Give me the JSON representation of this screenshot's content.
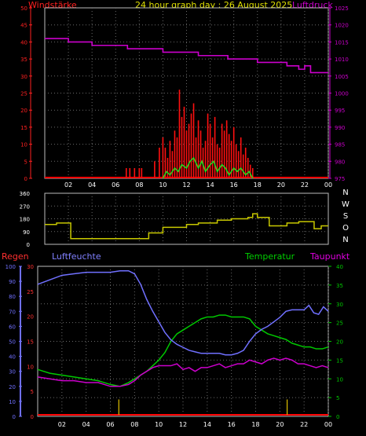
{
  "header": {
    "wind_label": "Windstärke",
    "title": "24 hour graph day : 26 August 2025",
    "pressure_label": "Luftdruck"
  },
  "lower_header": {
    "rain_label": "Regen",
    "humidity_label": "Luftfeuchte",
    "temperature_label": "Temperatur",
    "dewpoint_label": "Taupunkt"
  },
  "compass_labels": [
    "N",
    "W",
    "S",
    "O",
    "N"
  ],
  "colors": {
    "background": "#000000",
    "plot_bg": "#000000",
    "grid": "#6a6a6a",
    "wind_axis": "#ff2020",
    "pressure_axis": "#cc00cc",
    "direction": "#c8c800",
    "humidity": "#7070ff",
    "temperature": "#00c800",
    "dewpoint": "#cc00cc",
    "rain": "#e0c000",
    "title": "#e0e000",
    "axis_text": "#ffffff"
  },
  "chart_data": [
    {
      "type": "line",
      "name": "wind_pressure",
      "x_ticks": [
        "02",
        "04",
        "06",
        "08",
        "10",
        "12",
        "14",
        "16",
        "18",
        "20",
        "22",
        "00"
      ],
      "wind_axis": {
        "ticks": [
          0,
          5,
          10,
          15,
          20,
          25,
          30,
          35,
          40,
          45,
          50
        ],
        "ylim": [
          0,
          50
        ]
      },
      "pressure_axis": {
        "ticks": [
          975,
          980,
          985,
          990,
          995,
          1000,
          1005,
          1010,
          1015,
          1020,
          1025
        ],
        "ylim": [
          975,
          1025
        ]
      },
      "pressure_steps": [
        [
          0,
          1016
        ],
        [
          2.0,
          1015
        ],
        [
          4.0,
          1014
        ],
        [
          7.0,
          1013
        ],
        [
          10.0,
          1012
        ],
        [
          13.0,
          1011
        ],
        [
          15.5,
          1010
        ],
        [
          18.0,
          1009
        ],
        [
          20.5,
          1008
        ],
        [
          21.5,
          1007
        ],
        [
          22.0,
          1008
        ],
        [
          22.5,
          1006
        ],
        [
          24,
          1006
        ]
      ],
      "gust_bars": [
        [
          6.9,
          3
        ],
        [
          7.2,
          3
        ],
        [
          7.6,
          3
        ],
        [
          8.0,
          3
        ],
        [
          8.2,
          3
        ],
        [
          9.3,
          5
        ],
        [
          9.7,
          9
        ],
        [
          10.0,
          12
        ],
        [
          10.2,
          9
        ],
        [
          10.4,
          6
        ],
        [
          10.6,
          11
        ],
        [
          10.8,
          8
        ],
        [
          11.0,
          14
        ],
        [
          11.2,
          12
        ],
        [
          11.4,
          26
        ],
        [
          11.6,
          18
        ],
        [
          11.8,
          21
        ],
        [
          12.0,
          14
        ],
        [
          12.2,
          16
        ],
        [
          12.4,
          19
        ],
        [
          12.6,
          22
        ],
        [
          12.8,
          12
        ],
        [
          13.0,
          17
        ],
        [
          13.2,
          14
        ],
        [
          13.4,
          9
        ],
        [
          13.6,
          11
        ],
        [
          13.8,
          19
        ],
        [
          14.0,
          16
        ],
        [
          14.2,
          12
        ],
        [
          14.4,
          18
        ],
        [
          14.6,
          10
        ],
        [
          14.8,
          9
        ],
        [
          15.0,
          16
        ],
        [
          15.2,
          14
        ],
        [
          15.4,
          17
        ],
        [
          15.6,
          13
        ],
        [
          15.8,
          11
        ],
        [
          16.0,
          15
        ],
        [
          16.2,
          10
        ],
        [
          16.4,
          8
        ],
        [
          16.6,
          12
        ],
        [
          16.8,
          7
        ],
        [
          17.0,
          9
        ],
        [
          17.2,
          6
        ],
        [
          17.4,
          4
        ],
        [
          17.6,
          3
        ]
      ],
      "wind_avg": [
        [
          10.0,
          0
        ],
        [
          10.3,
          2
        ],
        [
          10.6,
          1
        ],
        [
          11.0,
          3
        ],
        [
          11.3,
          2
        ],
        [
          11.6,
          4
        ],
        [
          12.0,
          3
        ],
        [
          12.3,
          5
        ],
        [
          12.6,
          6
        ],
        [
          13.0,
          3
        ],
        [
          13.3,
          5
        ],
        [
          13.6,
          2
        ],
        [
          14.0,
          4
        ],
        [
          14.3,
          5
        ],
        [
          14.6,
          2
        ],
        [
          15.0,
          4
        ],
        [
          15.3,
          3
        ],
        [
          15.6,
          1
        ],
        [
          16.0,
          3
        ],
        [
          16.3,
          2
        ],
        [
          16.6,
          3
        ],
        [
          17.0,
          1
        ],
        [
          17.3,
          2
        ],
        [
          17.6,
          0
        ]
      ],
      "ylabel": ""
    },
    {
      "type": "line",
      "name": "wind_direction",
      "y_ticks": [
        0,
        90,
        180,
        270,
        360
      ],
      "ylim": [
        0,
        360
      ],
      "steps": [
        [
          0,
          140
        ],
        [
          1.0,
          150
        ],
        [
          2.2,
          40
        ],
        [
          8.7,
          40
        ],
        [
          8.8,
          80
        ],
        [
          10.0,
          120
        ],
        [
          12.0,
          140
        ],
        [
          13.0,
          150
        ],
        [
          14.6,
          170
        ],
        [
          15.8,
          180
        ],
        [
          17.2,
          190
        ],
        [
          17.6,
          215
        ],
        [
          18.0,
          190
        ],
        [
          19.0,
          130
        ],
        [
          20.5,
          150
        ],
        [
          21.5,
          160
        ],
        [
          22.8,
          110
        ],
        [
          23.4,
          130
        ],
        [
          24,
          130
        ]
      ]
    },
    {
      "type": "line",
      "name": "humidity_temp",
      "x_ticks": [
        "02",
        "04",
        "06",
        "08",
        "10",
        "12",
        "14",
        "16",
        "18",
        "20",
        "22",
        "00"
      ],
      "humidity_axis": {
        "ticks": [
          0,
          10,
          20,
          30,
          40,
          50,
          60,
          70,
          80,
          90,
          100
        ],
        "ylim": [
          0,
          100
        ]
      },
      "rain_axis": {
        "ticks": [
          0,
          5,
          10,
          15,
          20,
          25,
          30
        ],
        "ylim": [
          0,
          30
        ]
      },
      "temp_axis": {
        "ticks": [
          0,
          5,
          10,
          15,
          20,
          25,
          30,
          35,
          40
        ],
        "ylim": [
          0,
          40
        ]
      },
      "humidity": [
        [
          0,
          88
        ],
        [
          1,
          91
        ],
        [
          2,
          94
        ],
        [
          3,
          95
        ],
        [
          4,
          96
        ],
        [
          5,
          96
        ],
        [
          6,
          96
        ],
        [
          6.8,
          97
        ],
        [
          7.5,
          97
        ],
        [
          8.0,
          95
        ],
        [
          8.5,
          88
        ],
        [
          9.0,
          78
        ],
        [
          9.5,
          70
        ],
        [
          10.0,
          63
        ],
        [
          10.5,
          56
        ],
        [
          11.0,
          51
        ],
        [
          11.5,
          48
        ],
        [
          12.0,
          46
        ],
        [
          12.5,
          44
        ],
        [
          13.0,
          43
        ],
        [
          13.5,
          42
        ],
        [
          14.0,
          42
        ],
        [
          14.5,
          42
        ],
        [
          15.0,
          42
        ],
        [
          15.5,
          41
        ],
        [
          16.0,
          41
        ],
        [
          16.5,
          42
        ],
        [
          17.0,
          44
        ],
        [
          17.5,
          50
        ],
        [
          18.0,
          55
        ],
        [
          18.5,
          58
        ],
        [
          19.0,
          60
        ],
        [
          19.5,
          63
        ],
        [
          20.0,
          66
        ],
        [
          20.5,
          70
        ],
        [
          21.0,
          71
        ],
        [
          21.5,
          71
        ],
        [
          22.0,
          71
        ],
        [
          22.4,
          74
        ],
        [
          22.8,
          69
        ],
        [
          23.2,
          68
        ],
        [
          23.6,
          73
        ],
        [
          24,
          70
        ]
      ],
      "temperature": [
        [
          0,
          12.5
        ],
        [
          1,
          11.5
        ],
        [
          2,
          11
        ],
        [
          3,
          10.5
        ],
        [
          4,
          10
        ],
        [
          5,
          9.5
        ],
        [
          6,
          8.5
        ],
        [
          6.8,
          8
        ],
        [
          7.5,
          9
        ],
        [
          8.0,
          10
        ],
        [
          8.5,
          11
        ],
        [
          9.0,
          12
        ],
        [
          9.5,
          13.5
        ],
        [
          10.0,
          15
        ],
        [
          10.5,
          17
        ],
        [
          11.0,
          20
        ],
        [
          11.5,
          22
        ],
        [
          12.0,
          23
        ],
        [
          12.5,
          24
        ],
        [
          13.0,
          25
        ],
        [
          13.5,
          26
        ],
        [
          14.0,
          26.5
        ],
        [
          14.5,
          26.5
        ],
        [
          15.0,
          27
        ],
        [
          15.5,
          27
        ],
        [
          16.0,
          26.5
        ],
        [
          16.5,
          26.5
        ],
        [
          17.0,
          26.5
        ],
        [
          17.5,
          26
        ],
        [
          18.0,
          24
        ],
        [
          18.5,
          23
        ],
        [
          19.0,
          22
        ],
        [
          19.5,
          21.5
        ],
        [
          20.0,
          21
        ],
        [
          20.5,
          20.5
        ],
        [
          21.0,
          19.5
        ],
        [
          21.5,
          19
        ],
        [
          22.0,
          18.5
        ],
        [
          22.5,
          18.5
        ],
        [
          23.0,
          18
        ],
        [
          23.5,
          18
        ],
        [
          24,
          18.5
        ]
      ],
      "dewpoint": [
        [
          0,
          10.5
        ],
        [
          1,
          10
        ],
        [
          2,
          9.5
        ],
        [
          3,
          9.5
        ],
        [
          4,
          9
        ],
        [
          5,
          9
        ],
        [
          6,
          8
        ],
        [
          6.8,
          8
        ],
        [
          7.5,
          8.5
        ],
        [
          8.0,
          9.5
        ],
        [
          8.5,
          11
        ],
        [
          9.0,
          12
        ],
        [
          9.5,
          13
        ],
        [
          10.0,
          13.5
        ],
        [
          10.5,
          13.5
        ],
        [
          11.0,
          13.5
        ],
        [
          11.5,
          14
        ],
        [
          12.0,
          12.5
        ],
        [
          12.5,
          13
        ],
        [
          13.0,
          12
        ],
        [
          13.5,
          13
        ],
        [
          14.0,
          13
        ],
        [
          14.5,
          13.5
        ],
        [
          15.0,
          14
        ],
        [
          15.5,
          13
        ],
        [
          16.0,
          13.5
        ],
        [
          16.5,
          14
        ],
        [
          17.0,
          14
        ],
        [
          17.5,
          15
        ],
        [
          18.0,
          14.5
        ],
        [
          18.5,
          14
        ],
        [
          19.0,
          15
        ],
        [
          19.5,
          15.5
        ],
        [
          20.0,
          15
        ],
        [
          20.5,
          15.5
        ],
        [
          21.0,
          15
        ],
        [
          21.5,
          14
        ],
        [
          22.0,
          14
        ],
        [
          22.5,
          13.5
        ],
        [
          23.0,
          13
        ],
        [
          23.5,
          13.5
        ],
        [
          24,
          13
        ]
      ],
      "rain": [
        [
          6.7,
          1.5
        ],
        [
          20.6,
          1.5
        ]
      ],
      "ylabel": ""
    }
  ]
}
